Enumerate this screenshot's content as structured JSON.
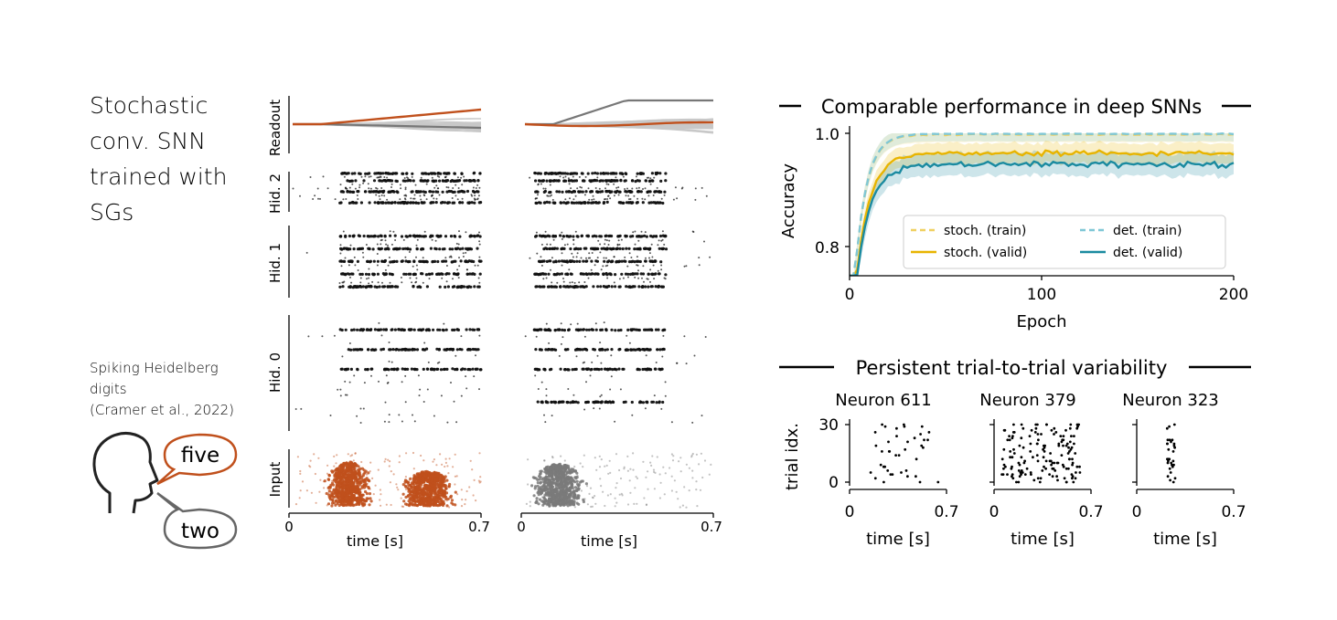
{
  "left_panel": {
    "title": [
      "Stochastic",
      "conv. SNN",
      "trained with",
      "SGs"
    ],
    "dataset": [
      "Spiking Heidelberg",
      "digits",
      "(Cramer et al., 2022)"
    ],
    "bubble_top": "five",
    "bubble_bottom": "two"
  },
  "raster": {
    "row_labels": [
      "Readout",
      "Hid. 2",
      "Hid. 1",
      "Hid. 0",
      "Input"
    ],
    "xlabel": "time [s]",
    "xticks": [
      "0",
      "0.7"
    ],
    "xlim": [
      0,
      0.7
    ],
    "colors": {
      "highlight": "#c0501c",
      "gray": "#7a7a7a",
      "spike": "#111111"
    }
  },
  "chart_data": [
    {
      "type": "line",
      "title": "Comparable performance in deep SNNs",
      "xlabel": "Epoch",
      "ylabel": "Accuracy",
      "xlim": [
        0,
        200
      ],
      "ylim": [
        0.75,
        1.0
      ],
      "xticks": [
        "0",
        "100",
        "200"
      ],
      "yticks": [
        "0.8",
        "1.0"
      ],
      "legend_position": "lower-right",
      "series": [
        {
          "name": "stoch. (train)",
          "color": "#f0d060",
          "dashed": true,
          "plateau": 0.998
        },
        {
          "name": "stoch. (valid)",
          "color": "#e8b400",
          "dashed": false,
          "plateau": 0.965
        },
        {
          "name": "det. (train)",
          "color": "#7fc7d6",
          "dashed": true,
          "plateau": 0.999
        },
        {
          "name": "det. (valid)",
          "color": "#1a8aa0",
          "dashed": false,
          "plateau": 0.945
        }
      ]
    },
    {
      "type": "scatter",
      "title": "Persistent trial-to-trial variability",
      "ylabel": "trial idx.",
      "xlabel": "time [s]",
      "xlim": [
        0,
        0.7
      ],
      "ylim": [
        0,
        30
      ],
      "xticks": [
        "0",
        "0.7"
      ],
      "yticks": [
        "0",
        "30"
      ],
      "panels": [
        {
          "name": "Neuron 611"
        },
        {
          "name": "Neuron 379"
        },
        {
          "name": "Neuron 323"
        }
      ]
    }
  ]
}
